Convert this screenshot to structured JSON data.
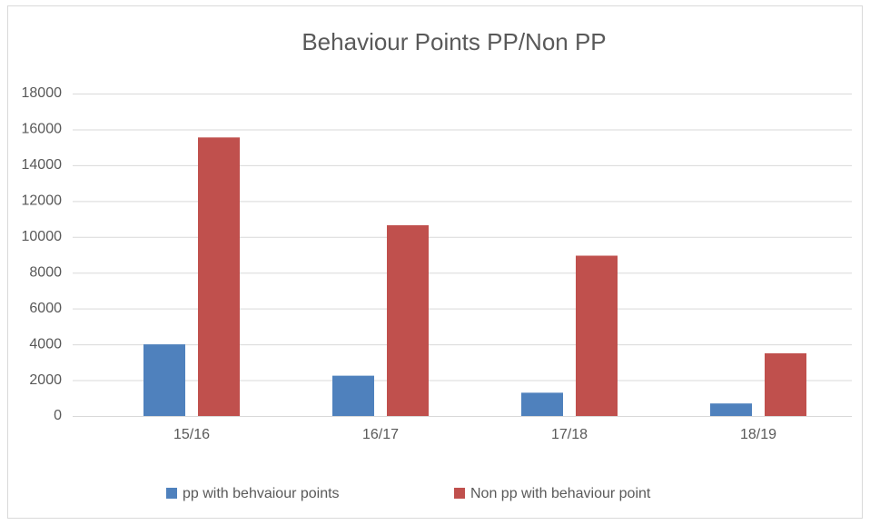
{
  "chart_data": {
    "type": "bar",
    "title": "Behaviour Points PP/Non PP",
    "categories": [
      "15/16",
      "16/17",
      "17/18",
      "18/19"
    ],
    "series": [
      {
        "name": "pp with behvaiour points",
        "color": "#4f81bd",
        "values": [
          4000,
          2250,
          1300,
          700
        ]
      },
      {
        "name": "Non pp with behaviour point",
        "color": "#c0504d",
        "values": [
          15550,
          10650,
          8950,
          3500
        ]
      }
    ],
    "ylim": [
      0,
      18000
    ],
    "yticks": [
      0,
      2000,
      4000,
      6000,
      8000,
      10000,
      12000,
      14000,
      16000,
      18000
    ],
    "grid": true,
    "legend": "bottom"
  }
}
